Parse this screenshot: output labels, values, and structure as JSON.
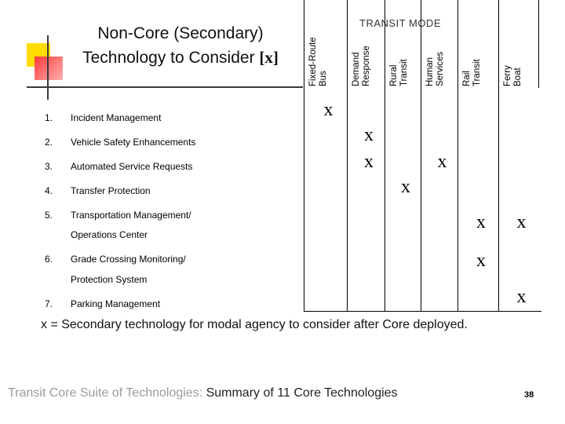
{
  "title": {
    "text": "Non-Core (Secondary) Technology to Consider ",
    "marker": "[x]"
  },
  "mode_header": "TRANSIT MODE",
  "columns": [
    {
      "line1": "Fixed-Route",
      "line2": "Bus"
    },
    {
      "line1": "Demand",
      "line2": "Response"
    },
    {
      "line1": "Rural",
      "line2": "Transit"
    },
    {
      "line1": "Human",
      "line2": "Services"
    },
    {
      "line1": "Rail",
      "line2": "Transit"
    },
    {
      "line1": "Ferry",
      "line2": "Boat"
    }
  ],
  "rows": [
    {
      "num": "1.",
      "label": "Incident Management",
      "label2": "",
      "marks": [
        "x",
        "",
        "",
        "",
        "",
        ""
      ]
    },
    {
      "num": "2.",
      "label": "Vehicle Safety Enhancements",
      "label2": "",
      "marks": [
        "",
        "x",
        "",
        "",
        "",
        ""
      ]
    },
    {
      "num": "3.",
      "label": "Automated Service Requests",
      "label2": "",
      "marks": [
        "",
        "x",
        "",
        "x",
        "",
        ""
      ]
    },
    {
      "num": "4.",
      "label": "Transfer Protection",
      "label2": "",
      "marks": [
        "",
        "",
        "x",
        "",
        "",
        ""
      ]
    },
    {
      "num": "5.",
      "label": "Transportation Management/",
      "label2": "Operations Center",
      "marks": [
        "",
        "",
        "",
        "",
        "x",
        "x"
      ]
    },
    {
      "num": "6.",
      "label": "Grade Crossing Monitoring/",
      "label2": "Protection System",
      "marks": [
        "",
        "",
        "",
        "",
        "x",
        ""
      ]
    },
    {
      "num": "7.",
      "label": "Parking Management",
      "label2": "",
      "marks": [
        "",
        "",
        "",
        "",
        "",
        "x"
      ]
    }
  ],
  "footnote": "x = Secondary technology for modal agency to consider after Core deployed.",
  "footer": {
    "prefix": "Transit Core Suite of Technologies: ",
    "strong": "Summary of 11 Core Technologies"
  },
  "page_number": "38"
}
